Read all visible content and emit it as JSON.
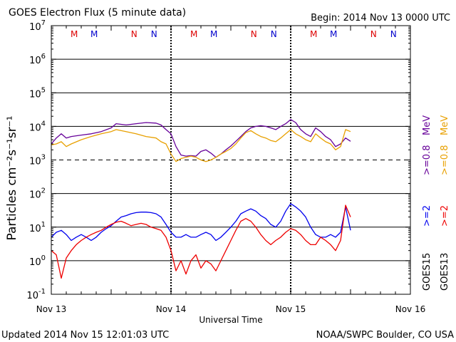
{
  "chart_data": {
    "type": "line",
    "title": "GOES Electron Flux (5 minute data)",
    "begin_label": "Begin: 2014 Nov 13 0000 UTC",
    "xlabel": "Universal Time",
    "ylabel": "Particles cm⁻²s⁻¹sr⁻¹",
    "y_scale": "log",
    "ylim": [
      0.1,
      10000000
    ],
    "y_ticks": [
      {
        "base": "10",
        "exp": "7",
        "value": 10000000
      },
      {
        "base": "10",
        "exp": "6",
        "value": 1000000
      },
      {
        "base": "10",
        "exp": "5",
        "value": 100000
      },
      {
        "base": "10",
        "exp": "4",
        "value": 10000
      },
      {
        "base": "10",
        "exp": "3",
        "value": 1000
      },
      {
        "base": "10",
        "exp": "2",
        "value": 100
      },
      {
        "base": "10",
        "exp": "1",
        "value": 10
      },
      {
        "base": "10",
        "exp": "0",
        "value": 1
      },
      {
        "base": "10",
        "exp": "-1",
        "value": 0.1
      }
    ],
    "xlim": [
      0,
      72
    ],
    "x_ticks": [
      {
        "label": "Nov 13",
        "hours": 0
      },
      {
        "label": "Nov 14",
        "hours": 24
      },
      {
        "label": "Nov 15",
        "hours": 48
      },
      {
        "label": "Nov 16",
        "hours": 72
      }
    ],
    "threshold_line": {
      "value": 1000,
      "style": "dashed"
    },
    "grid": true,
    "noon_midnight_markers": [
      {
        "text": "M",
        "hours": 4.6,
        "color": "#dd0000"
      },
      {
        "text": "M",
        "hours": 8.6,
        "color": "#0000cc"
      },
      {
        "text": "N",
        "hours": 16.6,
        "color": "#dd0000"
      },
      {
        "text": "N",
        "hours": 20.6,
        "color": "#0000cc"
      },
      {
        "text": "M",
        "hours": 28.6,
        "color": "#dd0000"
      },
      {
        "text": "M",
        "hours": 32.6,
        "color": "#0000cc"
      },
      {
        "text": "N",
        "hours": 40.6,
        "color": "#dd0000"
      },
      {
        "text": "N",
        "hours": 44.6,
        "color": "#0000cc"
      },
      {
        "text": "M",
        "hours": 52.6,
        "color": "#dd0000"
      },
      {
        "text": "M",
        "hours": 56.6,
        "color": "#0000cc"
      },
      {
        "text": "N",
        "hours": 64.6,
        "color": "#dd0000"
      },
      {
        "text": "N",
        "hours": 68.6,
        "color": "#0000cc"
      }
    ],
    "legend": {
      "placement": "right",
      "columns": [
        {
          "satellite": "GOES15",
          "entries": [
            {
              "text": ">=2",
              "unit": "",
              "color": "#0000ee"
            },
            {
              "text": ">=0.8",
              "unit": "MeV",
              "color": "#660099"
            }
          ]
        },
        {
          "satellite": "GOES13",
          "entries": [
            {
              "text": ">=2",
              "unit": "",
              "color": "#ee0000"
            },
            {
              "text": ">=0.8",
              "unit": "MeV",
              "color": "#e8a000"
            }
          ]
        }
      ]
    },
    "series": [
      {
        "name": "GOES15 >=0.8 MeV",
        "color": "#660099",
        "points": [
          [
            0,
            3000
          ],
          [
            1,
            4500
          ],
          [
            2,
            6000
          ],
          [
            3,
            4500
          ],
          [
            4,
            5000
          ],
          [
            6,
            5500
          ],
          [
            8,
            6000
          ],
          [
            10,
            7000
          ],
          [
            12,
            9000
          ],
          [
            13,
            12000
          ],
          [
            15,
            11000
          ],
          [
            17,
            12000
          ],
          [
            19,
            13000
          ],
          [
            21,
            12500
          ],
          [
            22,
            11000
          ],
          [
            23,
            8000
          ],
          [
            24,
            6000
          ],
          [
            25,
            2500
          ],
          [
            26,
            1400
          ],
          [
            27,
            1300
          ],
          [
            28,
            1350
          ],
          [
            29,
            1300
          ],
          [
            30,
            1800
          ],
          [
            31,
            2000
          ],
          [
            32,
            1600
          ],
          [
            33,
            1200
          ],
          [
            34,
            1500
          ],
          [
            35,
            2000
          ],
          [
            36,
            2600
          ],
          [
            37,
            3600
          ],
          [
            38,
            5000
          ],
          [
            39,
            7000
          ],
          [
            40,
            9000
          ],
          [
            41,
            10000
          ],
          [
            42,
            10500
          ],
          [
            43,
            10000
          ],
          [
            44,
            9000
          ],
          [
            45,
            8000
          ],
          [
            46,
            10000
          ],
          [
            47,
            12000
          ],
          [
            48,
            16000
          ],
          [
            49,
            13000
          ],
          [
            50,
            8000
          ],
          [
            51,
            6000
          ],
          [
            52,
            5000
          ],
          [
            53,
            9000
          ],
          [
            54,
            7000
          ],
          [
            55,
            5000
          ],
          [
            56,
            4000
          ],
          [
            57,
            2500
          ],
          [
            58,
            3000
          ],
          [
            59,
            4500
          ],
          [
            60,
            3600
          ]
        ]
      },
      {
        "name": "GOES13 >=0.8 MeV",
        "color": "#e8a000",
        "points": [
          [
            0,
            2800
          ],
          [
            1,
            3000
          ],
          [
            2,
            3500
          ],
          [
            3,
            2500
          ],
          [
            4,
            3000
          ],
          [
            6,
            4000
          ],
          [
            8,
            5000
          ],
          [
            10,
            6000
          ],
          [
            12,
            7000
          ],
          [
            13,
            8000
          ],
          [
            15,
            7000
          ],
          [
            17,
            6000
          ],
          [
            19,
            5000
          ],
          [
            21,
            4500
          ],
          [
            22,
            3500
          ],
          [
            23,
            3000
          ],
          [
            24,
            1500
          ],
          [
            25,
            900
          ],
          [
            26,
            1100
          ],
          [
            27,
            1200
          ],
          [
            28,
            1300
          ],
          [
            29,
            1200
          ],
          [
            30,
            1000
          ],
          [
            31,
            900
          ],
          [
            32,
            1000
          ],
          [
            33,
            1200
          ],
          [
            34,
            1500
          ],
          [
            35,
            1800
          ],
          [
            36,
            2200
          ],
          [
            37,
            3000
          ],
          [
            38,
            4500
          ],
          [
            39,
            6500
          ],
          [
            40,
            7500
          ],
          [
            41,
            6000
          ],
          [
            42,
            5000
          ],
          [
            43,
            4500
          ],
          [
            44,
            3800
          ],
          [
            45,
            3500
          ],
          [
            46,
            4500
          ],
          [
            47,
            6000
          ],
          [
            48,
            8000
          ],
          [
            49,
            6000
          ],
          [
            50,
            5000
          ],
          [
            51,
            4000
          ],
          [
            52,
            3500
          ],
          [
            53,
            6000
          ],
          [
            54,
            4500
          ],
          [
            55,
            3500
          ],
          [
            56,
            3000
          ],
          [
            57,
            2000
          ],
          [
            58,
            2500
          ],
          [
            59,
            8000
          ],
          [
            60,
            7000
          ]
        ]
      },
      {
        "name": "GOES15 >=2 MeV",
        "color": "#0000ee",
        "points": [
          [
            0,
            5
          ],
          [
            1,
            7
          ],
          [
            2,
            8
          ],
          [
            3,
            6
          ],
          [
            4,
            4
          ],
          [
            5,
            5
          ],
          [
            6,
            6
          ],
          [
            7,
            5
          ],
          [
            8,
            4
          ],
          [
            9,
            5
          ],
          [
            10,
            7
          ],
          [
            11,
            9
          ],
          [
            12,
            11
          ],
          [
            13,
            15
          ],
          [
            14,
            20
          ],
          [
            15,
            22
          ],
          [
            16,
            25
          ],
          [
            17,
            27
          ],
          [
            18,
            28
          ],
          [
            19,
            28
          ],
          [
            20,
            27
          ],
          [
            21,
            25
          ],
          [
            22,
            20
          ],
          [
            23,
            12
          ],
          [
            24,
            7
          ],
          [
            25,
            5
          ],
          [
            26,
            5
          ],
          [
            27,
            6
          ],
          [
            28,
            5
          ],
          [
            29,
            5
          ],
          [
            30,
            6
          ],
          [
            31,
            7
          ],
          [
            32,
            6
          ],
          [
            33,
            4
          ],
          [
            34,
            5
          ],
          [
            35,
            7
          ],
          [
            36,
            10
          ],
          [
            37,
            15
          ],
          [
            38,
            25
          ],
          [
            39,
            30
          ],
          [
            40,
            35
          ],
          [
            41,
            30
          ],
          [
            42,
            22
          ],
          [
            43,
            18
          ],
          [
            44,
            12
          ],
          [
            45,
            10
          ],
          [
            46,
            15
          ],
          [
            47,
            30
          ],
          [
            48,
            50
          ],
          [
            49,
            40
          ],
          [
            50,
            30
          ],
          [
            51,
            20
          ],
          [
            52,
            10
          ],
          [
            53,
            6
          ],
          [
            54,
            5
          ],
          [
            55,
            5
          ],
          [
            56,
            6
          ],
          [
            57,
            5
          ],
          [
            58,
            7
          ],
          [
            59,
            40
          ],
          [
            60,
            8
          ]
        ]
      },
      {
        "name": "GOES13 >=2 MeV",
        "color": "#ee0000",
        "points": [
          [
            0,
            2
          ],
          [
            1,
            1.5
          ],
          [
            2,
            0.3
          ],
          [
            3,
            1.2
          ],
          [
            4,
            2
          ],
          [
            5,
            3
          ],
          [
            6,
            4
          ],
          [
            7,
            5
          ],
          [
            8,
            6
          ],
          [
            9,
            7
          ],
          [
            10,
            8
          ],
          [
            11,
            10
          ],
          [
            12,
            12
          ],
          [
            13,
            14
          ],
          [
            14,
            15
          ],
          [
            15,
            13
          ],
          [
            16,
            11
          ],
          [
            17,
            12
          ],
          [
            18,
            13
          ],
          [
            19,
            12
          ],
          [
            20,
            10
          ],
          [
            21,
            9
          ],
          [
            22,
            8
          ],
          [
            23,
            5
          ],
          [
            24,
            2
          ],
          [
            25,
            0.5
          ],
          [
            26,
            1
          ],
          [
            27,
            0.4
          ],
          [
            28,
            1
          ],
          [
            29,
            1.5
          ],
          [
            30,
            0.6
          ],
          [
            31,
            1
          ],
          [
            32,
            0.8
          ],
          [
            33,
            0.5
          ],
          [
            34,
            1
          ],
          [
            35,
            2
          ],
          [
            36,
            4
          ],
          [
            37,
            8
          ],
          [
            38,
            15
          ],
          [
            39,
            18
          ],
          [
            40,
            15
          ],
          [
            41,
            10
          ],
          [
            42,
            6
          ],
          [
            43,
            4
          ],
          [
            44,
            3
          ],
          [
            45,
            4
          ],
          [
            46,
            5
          ],
          [
            47,
            7
          ],
          [
            48,
            9
          ],
          [
            49,
            8
          ],
          [
            50,
            6
          ],
          [
            51,
            4
          ],
          [
            52,
            3
          ],
          [
            53,
            3
          ],
          [
            54,
            5
          ],
          [
            55,
            4
          ],
          [
            56,
            3
          ],
          [
            57,
            2
          ],
          [
            58,
            4
          ],
          [
            59,
            45
          ],
          [
            60,
            20
          ]
        ]
      }
    ]
  },
  "footer": {
    "updated": "Updated 2014 Nov 15 12:01:03 UTC",
    "credit": "NOAA/SWPC Boulder, CO USA"
  }
}
